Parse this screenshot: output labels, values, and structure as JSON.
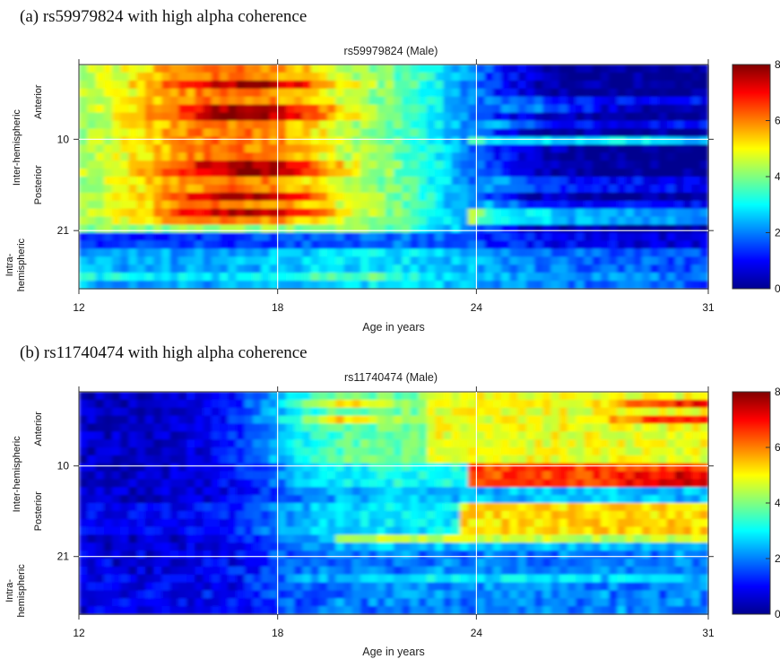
{
  "chart_data": [
    {
      "type": "heatmap",
      "panel": "(a)",
      "caption": "(a)  rs59979824 with high alpha coherence",
      "title": "rs59979824 (Male)",
      "xlabel": "Age in years",
      "x_ticks": [
        12,
        18,
        24,
        31
      ],
      "xlim": [
        12,
        31
      ],
      "y_ticks": [
        10,
        21
      ],
      "ylim": [
        1,
        28
      ],
      "y_group_labels": {
        "anterior": "Anterior",
        "posterior": "Posterior",
        "inter": "Inter-hemispheric",
        "intra_1": "Intra-",
        "intra_2": "hemispheric"
      },
      "colorbar": {
        "ticks": [
          0,
          2,
          4,
          6,
          8
        ],
        "range": [
          0,
          8
        ],
        "colormap": "jet"
      },
      "grid": true,
      "pattern": "high values before age 24, low values after"
    },
    {
      "type": "heatmap",
      "panel": "(b)",
      "caption": "(b)  rs11740474 with high alpha coherence",
      "title": "rs11740474 (Male)",
      "xlabel": "Age in years",
      "x_ticks": [
        12,
        18,
        24,
        31
      ],
      "xlim": [
        12,
        31
      ],
      "y_ticks": [
        10,
        21
      ],
      "ylim": [
        1,
        28
      ],
      "y_group_labels": {
        "anterior": "Anterior",
        "posterior": "Posterior",
        "inter": "Inter-hemispheric",
        "intra_1": "Intra-",
        "intra_2": "hemispheric"
      },
      "colorbar": {
        "ticks": [
          0,
          2,
          4,
          6,
          8
        ],
        "range": [
          0,
          8
        ],
        "colormap": "jet"
      },
      "grid": true,
      "pattern": "low values before age 18, high values after age 24"
    }
  ]
}
